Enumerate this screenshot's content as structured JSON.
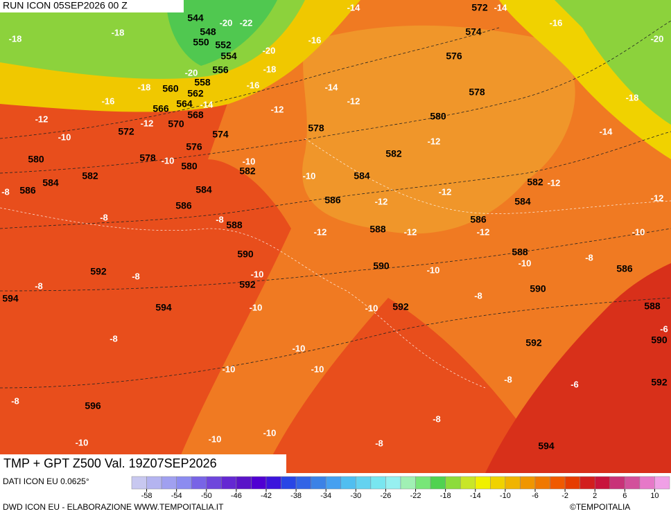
{
  "header": {
    "run": "RUN ICON 05SEP2026 00 Z"
  },
  "footer": {
    "title": "TMP + GPT Z500 Val. 19Z07SEP2026",
    "source": "DATI ICON EU 0.0625°",
    "credit": "DWD ICON EU - ELABORAZIONE WWW.TEMPOITALIA.IT",
    "copyright": "©TEMPOITALIA"
  },
  "map": {
    "gpt_labels": [
      544,
      548,
      550,
      552,
      554,
      556,
      558,
      560,
      562,
      564,
      566,
      568,
      570,
      572,
      574,
      576,
      578,
      580,
      582,
      584,
      586,
      588,
      590,
      592,
      594,
      596,
      592,
      594,
      586,
      584,
      582,
      580,
      578,
      584,
      582,
      580,
      578,
      576,
      574,
      572,
      586,
      588,
      590,
      592,
      586,
      588,
      590,
      592,
      594,
      582,
      584,
      586,
      588,
      590,
      592
    ],
    "tmp_labels": [
      -14,
      -14,
      -20,
      -22,
      -18,
      -18,
      -16,
      -20,
      -16,
      -20,
      -18,
      -20,
      -18,
      -16,
      -14,
      -16,
      -14,
      -12,
      -12,
      -12,
      -12,
      -10,
      -18,
      -14,
      -12,
      -10,
      -10,
      -10,
      -12,
      -12,
      -12,
      -12,
      -8,
      -8,
      -8,
      -12,
      -12,
      -12,
      -10,
      -8,
      -10,
      -10,
      -8,
      -10,
      -8,
      -10,
      -10,
      -8,
      -8,
      -10,
      -10,
      -10,
      -6,
      -8,
      -6,
      -8,
      -8,
      -10,
      -10,
      -10,
      -8
    ],
    "colorbar": {
      "ticks": [
        -58,
        -54,
        -50,
        -46,
        -42,
        -38,
        -34,
        -30,
        -26,
        -22,
        -18,
        -14,
        -10,
        -6,
        -2,
        2,
        6,
        10
      ],
      "colors": [
        "#c8c8f0",
        "#b4b4f0",
        "#a0a0f0",
        "#8c8cf0",
        "#7864e6",
        "#6e46dc",
        "#6428d2",
        "#5a14c8",
        "#5000d2",
        "#3c14dc",
        "#2846e6",
        "#3264e6",
        "#3c82e6",
        "#46a0f0",
        "#50bef0",
        "#64d2f0",
        "#78e6f0",
        "#96f0f0",
        "#a0f0b4",
        "#78e678",
        "#50d250",
        "#8cdc3c",
        "#c8e628",
        "#f0f000",
        "#f0d200",
        "#f0b400",
        "#f09600",
        "#f07800",
        "#f05a00",
        "#e63c00",
        "#d21e1e",
        "#c8143c",
        "#c83278",
        "#d2509b",
        "#e678c8",
        "#f0a0e6"
      ]
    }
  }
}
